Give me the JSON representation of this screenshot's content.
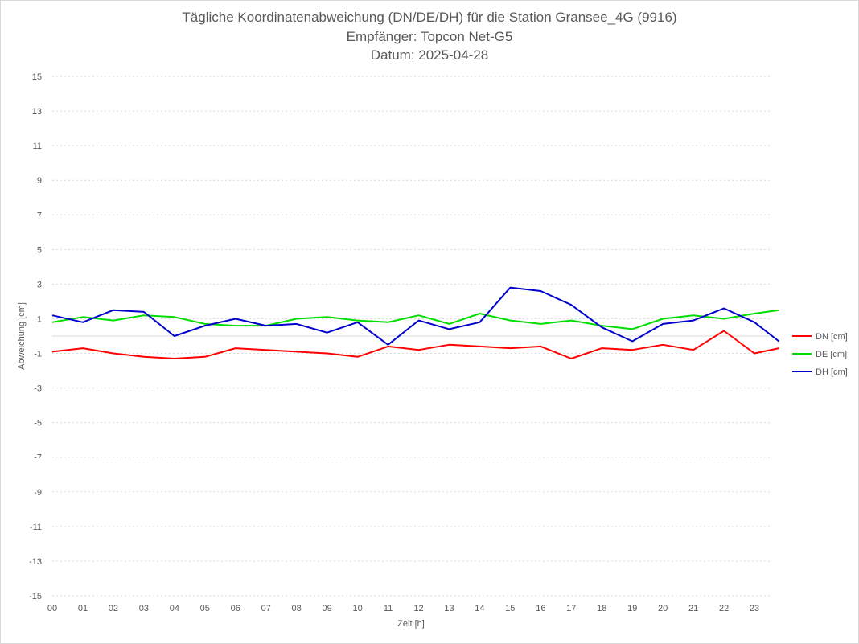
{
  "chart_data": {
    "type": "line",
    "title": "Tägliche Koordinatenabweichung (DN/DE/DH) für die Station Gransee_4G (9916)",
    "subtitle": "Empfänger: Topcon Net-G5",
    "date_line": "Datum: 2025-04-28",
    "xlabel": "Zeit [h]",
    "ylabel": "Abweichung [cm]",
    "ylim": [
      -15,
      15
    ],
    "xlim": [
      0,
      24
    ],
    "y_ticks": [
      "15",
      "13",
      "11",
      "9",
      "7",
      "5",
      "3",
      "1",
      "-1",
      "-3",
      "-5",
      "-7",
      "-9",
      "-11",
      "-13",
      "-15"
    ],
    "x_ticks": [
      "00",
      "01",
      "02",
      "03",
      "04",
      "05",
      "06",
      "07",
      "08",
      "09",
      "10",
      "11",
      "12",
      "13",
      "14",
      "15",
      "16",
      "17",
      "18",
      "19",
      "20",
      "21",
      "22",
      "23"
    ],
    "grid": true,
    "legend_position": "right",
    "x": [
      0,
      1,
      2,
      3,
      4,
      5,
      6,
      7,
      8,
      9,
      10,
      11,
      12,
      13,
      14,
      15,
      16,
      17,
      18,
      19,
      20,
      21,
      22,
      23,
      23.8
    ],
    "series": [
      {
        "name": "DN [cm]",
        "color": "#ff0000",
        "values": [
          -0.9,
          -0.7,
          -1.0,
          -1.2,
          -1.3,
          -1.2,
          -0.7,
          -0.8,
          -0.9,
          -1.0,
          -1.2,
          -0.6,
          -0.8,
          -0.5,
          -0.6,
          -0.7,
          -0.6,
          -1.3,
          -0.7,
          -0.8,
          -0.5,
          -0.8,
          0.3,
          -1.0,
          -0.7
        ]
      },
      {
        "name": "DE [cm]",
        "color": "#00dd00",
        "values": [
          0.8,
          1.1,
          0.9,
          1.2,
          1.1,
          0.7,
          0.6,
          0.6,
          1.0,
          1.1,
          0.9,
          0.8,
          1.2,
          0.7,
          1.3,
          0.9,
          0.7,
          0.9,
          0.6,
          0.4,
          1.0,
          1.2,
          1.0,
          1.3,
          1.5
        ]
      },
      {
        "name": "DH [cm]",
        "color": "#0000cc",
        "values": [
          1.2,
          0.8,
          1.5,
          1.4,
          0.0,
          0.6,
          1.0,
          0.6,
          0.7,
          0.2,
          0.8,
          -0.5,
          0.9,
          0.4,
          0.8,
          2.8,
          2.6,
          1.8,
          0.5,
          -0.3,
          0.7,
          0.9,
          1.6,
          0.8,
          -0.3
        ]
      }
    ]
  }
}
